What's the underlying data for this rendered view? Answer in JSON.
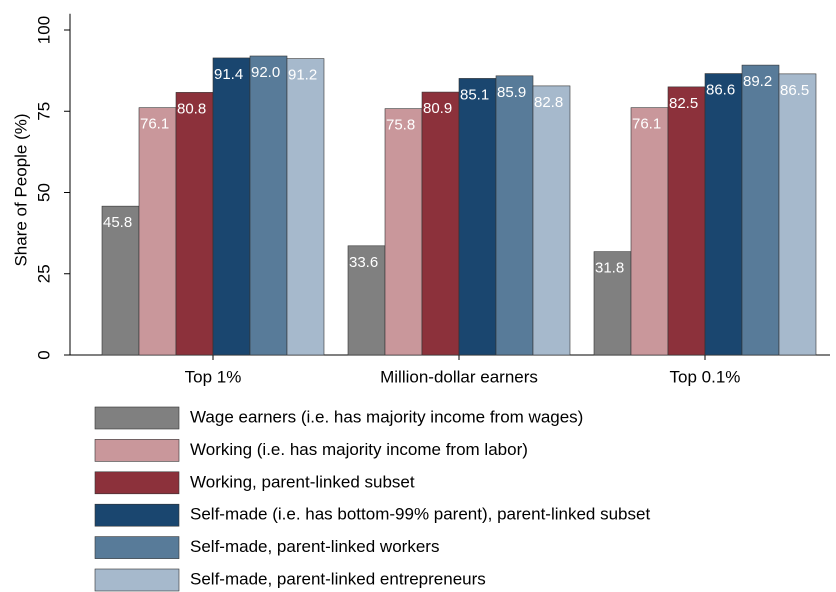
{
  "chart_data": {
    "type": "bar",
    "categories": [
      "Top 1%",
      "Million-dollar earners",
      "Top 0.1%"
    ],
    "y_label": "Share of People (%)",
    "ylim": [
      0,
      105
    ],
    "yticks": [
      0,
      25,
      50,
      75,
      100
    ],
    "grid": false,
    "series": [
      {
        "name": "Wage earners (i.e. has majority income from wages)",
        "color": "#808080",
        "values": [
          45.8,
          33.6,
          31.8
        ],
        "value_labels": [
          "45.8",
          "33.6",
          "31.8"
        ]
      },
      {
        "name": "Working (i.e. has majority income from labor)",
        "color": "#c9979b",
        "values": [
          76.1,
          75.8,
          76.1
        ],
        "value_labels": [
          "76.1",
          "75.8",
          "76.1"
        ]
      },
      {
        "name": "Working, parent-linked subset",
        "color": "#8c313b",
        "values": [
          80.8,
          80.9,
          82.5
        ],
        "value_labels": [
          "80.8",
          "80.9",
          "82.5"
        ]
      },
      {
        "name": "Self-made (i.e. has bottom-99% parent), parent-linked subset",
        "color": "#1a466f",
        "values": [
          91.4,
          85.1,
          86.6
        ],
        "value_labels": [
          "91.4",
          "85.1",
          "86.6"
        ]
      },
      {
        "name": "Self-made, parent-linked workers",
        "color": "#587b99",
        "values": [
          92.0,
          85.9,
          89.2
        ],
        "value_labels": [
          "92.0",
          "85.9",
          "89.2"
        ]
      },
      {
        "name": "Self-made, parent-linked entrepreneurs",
        "color": "#a6b9cc",
        "values": [
          91.2,
          82.8,
          86.5
        ],
        "value_labels": [
          "91.2",
          "82.8",
          "86.5"
        ]
      }
    ]
  }
}
